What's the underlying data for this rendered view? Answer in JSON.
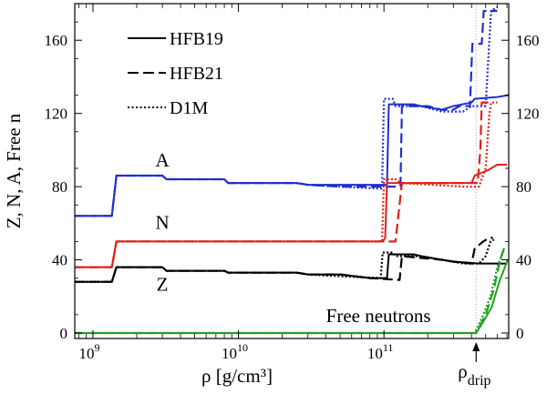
{
  "chart_data": {
    "type": "line",
    "x_scale": "log",
    "xlabel": "ρ [g/cm³]",
    "ylabel": "Z, N, A, Free n",
    "xlim": [
      750000000.0,
      720000000000.0
    ],
    "ylim": [
      -3,
      180
    ],
    "x_ticks": [
      {
        "value": 1000000000.0,
        "label": "10",
        "exp": "9"
      },
      {
        "value": 10000000000.0,
        "label": "10",
        "exp": "10"
      },
      {
        "value": 100000000000.0,
        "label": "10",
        "exp": "11"
      }
    ],
    "y_ticks": [
      0,
      40,
      80,
      120,
      160
    ],
    "drip_marker": {
      "value": 430000000000.0,
      "label": "ρ",
      "sub": "drip"
    },
    "legend": [
      {
        "name": "HFB19",
        "style": "solid"
      },
      {
        "name": "HFB21",
        "style": "dashed"
      },
      {
        "name": "D1M",
        "style": "dotted"
      }
    ],
    "curve_labels": [
      {
        "text": "A",
        "x": 3000000000.0,
        "y": 91,
        "color": "#1f2fd0"
      },
      {
        "text": "N",
        "x": 3000000000.0,
        "y": 57,
        "color": "#e0201a"
      },
      {
        "text": "Z",
        "x": 3000000000.0,
        "y": 23,
        "color": "#000000"
      },
      {
        "text": "Free neutrons",
        "x": 40000000000.0,
        "y": 6,
        "color": "#23a11f"
      }
    ],
    "series": [
      {
        "quantity": "A",
        "model": "HFB19",
        "color": "#1f2fd0",
        "style": "solid",
        "points": [
          [
            750000000.0,
            64
          ],
          [
            1350000000.0,
            64
          ],
          [
            1450000000.0,
            86
          ],
          [
            3000000000.0,
            86
          ],
          [
            3200000000.0,
            84
          ],
          [
            8000000000.0,
            84
          ],
          [
            8500000000.0,
            82
          ],
          [
            25000000000.0,
            82
          ],
          [
            30000000000.0,
            81
          ],
          [
            50000000000.0,
            81
          ],
          [
            80000000000.0,
            81
          ],
          [
            105000000000.0,
            81
          ],
          [
            108000000000.0,
            125
          ],
          [
            160000000000.0,
            125
          ],
          [
            180000000000.0,
            124
          ],
          [
            250000000000.0,
            122
          ],
          [
            300000000000.0,
            124
          ],
          [
            400000000000.0,
            126
          ],
          [
            420000000000.0,
            128
          ],
          [
            600000000000.0,
            129
          ],
          [
            720000000000.0,
            130
          ]
        ]
      },
      {
        "quantity": "A",
        "model": "HFB21",
        "color": "#1f2fd0",
        "style": "dashed",
        "points": [
          [
            750000000.0,
            64
          ],
          [
            1350000000.0,
            64
          ],
          [
            1450000000.0,
            86
          ],
          [
            3000000000.0,
            86
          ],
          [
            3200000000.0,
            84
          ],
          [
            8000000000.0,
            84
          ],
          [
            8500000000.0,
            82
          ],
          [
            25000000000.0,
            82
          ],
          [
            30000000000.0,
            81
          ],
          [
            50000000000.0,
            80
          ],
          [
            108000000000.0,
            80
          ],
          [
            130000000000.0,
            80
          ],
          [
            133000000000.0,
            124
          ],
          [
            200000000000.0,
            124
          ],
          [
            250000000000.0,
            122
          ],
          [
            300000000000.0,
            122
          ],
          [
            330000000000.0,
            124
          ],
          [
            390000000000.0,
            124
          ],
          [
            405000000000.0,
            158
          ],
          [
            470000000000.0,
            158
          ],
          [
            485000000000.0,
            176
          ],
          [
            600000000000.0,
            176
          ]
        ]
      },
      {
        "quantity": "A",
        "model": "D1M",
        "color": "#1f2fd0",
        "style": "dotted",
        "points": [
          [
            750000000.0,
            64
          ],
          [
            1350000000.0,
            64
          ],
          [
            1450000000.0,
            86
          ],
          [
            3000000000.0,
            86
          ],
          [
            3200000000.0,
            84
          ],
          [
            8000000000.0,
            84
          ],
          [
            8500000000.0,
            82
          ],
          [
            25000000000.0,
            82
          ],
          [
            30000000000.0,
            81
          ],
          [
            50000000000.0,
            80
          ],
          [
            90000000000.0,
            79
          ],
          [
            97000000000.0,
            79
          ],
          [
            100000000000.0,
            128
          ],
          [
            115000000000.0,
            128
          ],
          [
            120000000000.0,
            124
          ],
          [
            180000000000.0,
            124
          ],
          [
            250000000000.0,
            121
          ],
          [
            350000000000.0,
            121
          ],
          [
            400000000000.0,
            124
          ],
          [
            500000000000.0,
            124
          ],
          [
            530000000000.0,
            160
          ],
          [
            545000000000.0,
            176
          ],
          [
            600000000000.0,
            178
          ]
        ]
      },
      {
        "quantity": "N",
        "model": "HFB19",
        "color": "#e0201a",
        "style": "solid",
        "points": [
          [
            750000000.0,
            36
          ],
          [
            1350000000.0,
            36
          ],
          [
            1450000000.0,
            50
          ],
          [
            80000000000.0,
            50
          ],
          [
            98000000000.0,
            50
          ],
          [
            102000000000.0,
            52
          ],
          [
            105000000000.0,
            82
          ],
          [
            400000000000.0,
            82
          ],
          [
            420000000000.0,
            86
          ],
          [
            520000000000.0,
            89
          ],
          [
            600000000000.0,
            92
          ],
          [
            700000000000.0,
            92
          ]
        ]
      },
      {
        "quantity": "N",
        "model": "HFB21",
        "color": "#e0201a",
        "style": "dashed",
        "points": [
          [
            750000000.0,
            36
          ],
          [
            1350000000.0,
            36
          ],
          [
            1450000000.0,
            50
          ],
          [
            80000000000.0,
            50
          ],
          [
            120000000000.0,
            50
          ],
          [
            133000000000.0,
            82
          ],
          [
            440000000000.0,
            82
          ],
          [
            460000000000.0,
            100
          ],
          [
            470000000000.0,
            126
          ],
          [
            550000000000.0,
            126
          ]
        ]
      },
      {
        "quantity": "N",
        "model": "D1M",
        "color": "#e0201a",
        "style": "dotted",
        "points": [
          [
            750000000.0,
            36
          ],
          [
            1350000000.0,
            36
          ],
          [
            1450000000.0,
            50
          ],
          [
            80000000000.0,
            50
          ],
          [
            97000000000.0,
            50
          ],
          [
            100000000000.0,
            84
          ],
          [
            120000000000.0,
            84
          ],
          [
            130000000000.0,
            82
          ],
          [
            350000000000.0,
            80
          ],
          [
            450000000000.0,
            80
          ],
          [
            500000000000.0,
            90
          ],
          [
            530000000000.0,
            120
          ],
          [
            545000000000.0,
            126
          ],
          [
            600000000000.0,
            126
          ]
        ]
      },
      {
        "quantity": "Z",
        "model": "HFB19",
        "color": "#000000",
        "style": "solid",
        "points": [
          [
            750000000.0,
            28
          ],
          [
            1350000000.0,
            28
          ],
          [
            1450000000.0,
            36
          ],
          [
            3000000000.0,
            36
          ],
          [
            3200000000.0,
            34
          ],
          [
            8000000000.0,
            34
          ],
          [
            8500000000.0,
            33
          ],
          [
            25000000000.0,
            33
          ],
          [
            30000000000.0,
            32
          ],
          [
            50000000000.0,
            32
          ],
          [
            80000000000.0,
            30
          ],
          [
            105000000000.0,
            30
          ],
          [
            108000000000.0,
            43
          ],
          [
            160000000000.0,
            43
          ],
          [
            180000000000.0,
            42
          ],
          [
            250000000000.0,
            40
          ],
          [
            300000000000.0,
            39
          ],
          [
            450000000000.0,
            38
          ],
          [
            600000000000.0,
            38
          ],
          [
            700000000000.0,
            38
          ]
        ]
      },
      {
        "quantity": "Z",
        "model": "HFB21",
        "color": "#000000",
        "style": "dashed",
        "points": [
          [
            750000000.0,
            28
          ],
          [
            1350000000.0,
            28
          ],
          [
            1450000000.0,
            36
          ],
          [
            3000000000.0,
            36
          ],
          [
            3200000000.0,
            34
          ],
          [
            8000000000.0,
            34
          ],
          [
            8500000000.0,
            33
          ],
          [
            25000000000.0,
            33
          ],
          [
            30000000000.0,
            32
          ],
          [
            50000000000.0,
            32
          ],
          [
            80000000000.0,
            30
          ],
          [
            128000000000.0,
            29
          ],
          [
            133000000000.0,
            42
          ],
          [
            250000000000.0,
            40
          ],
          [
            300000000000.0,
            39
          ],
          [
            400000000000.0,
            38
          ],
          [
            420000000000.0,
            46
          ],
          [
            480000000000.0,
            50
          ],
          [
            530000000000.0,
            52
          ],
          [
            560000000000.0,
            52
          ]
        ]
      },
      {
        "quantity": "Z",
        "model": "D1M",
        "color": "#000000",
        "style": "dotted",
        "points": [
          [
            750000000.0,
            28
          ],
          [
            1350000000.0,
            28
          ],
          [
            1450000000.0,
            36
          ],
          [
            3000000000.0,
            36
          ],
          [
            3200000000.0,
            34
          ],
          [
            8000000000.0,
            34
          ],
          [
            8500000000.0,
            33
          ],
          [
            25000000000.0,
            33
          ],
          [
            30000000000.0,
            32
          ],
          [
            50000000000.0,
            31
          ],
          [
            95000000000.0,
            30
          ],
          [
            98000000000.0,
            44
          ],
          [
            115000000000.0,
            44
          ],
          [
            120000000000.0,
            42
          ],
          [
            180000000000.0,
            42
          ],
          [
            250000000000.0,
            40
          ],
          [
            350000000000.0,
            38
          ],
          [
            450000000000.0,
            38
          ],
          [
            500000000000.0,
            42
          ],
          [
            540000000000.0,
            50
          ],
          [
            570000000000.0,
            51
          ]
        ]
      },
      {
        "quantity": "Free n",
        "model": "HFB19",
        "color": "#23a11f",
        "style": "solid",
        "points": [
          [
            750000000.0,
            0
          ],
          [
            430000000000.0,
            0
          ],
          [
            480000000000.0,
            6
          ],
          [
            550000000000.0,
            14
          ],
          [
            620000000000.0,
            28
          ],
          [
            710000000000.0,
            40
          ]
        ]
      },
      {
        "quantity": "Free n",
        "model": "HFB21",
        "color": "#23a11f",
        "style": "dashed",
        "points": [
          [
            750000000.0,
            0
          ],
          [
            430000000000.0,
            0
          ],
          [
            500000000000.0,
            10
          ],
          [
            570000000000.0,
            24
          ],
          [
            630000000000.0,
            40
          ],
          [
            680000000000.0,
            48
          ]
        ]
      },
      {
        "quantity": "Free n",
        "model": "D1M",
        "color": "#23a11f",
        "style": "dotted",
        "points": [
          [
            750000000.0,
            0
          ],
          [
            420000000000.0,
            0
          ],
          [
            470000000000.0,
            8
          ],
          [
            540000000000.0,
            20
          ],
          [
            600000000000.0,
            36
          ],
          [
            670000000000.0,
            46
          ]
        ]
      }
    ]
  }
}
